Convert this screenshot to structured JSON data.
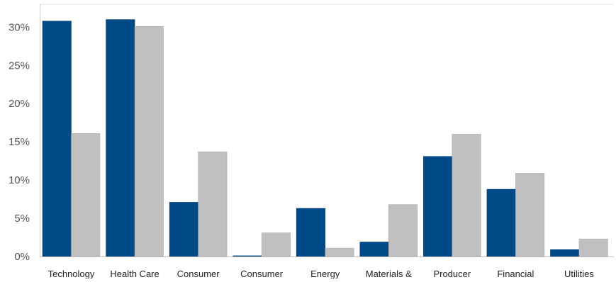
{
  "chart_data": {
    "type": "bar",
    "title": "",
    "xlabel": "",
    "ylabel": "",
    "categories": [
      "Technology",
      "Health Care",
      "Consumer",
      "Consumer",
      "Energy",
      "Materials &",
      "Producer",
      "Financial",
      "Utilities"
    ],
    "series": [
      {
        "values": [
          30.8,
          31.0,
          7.1,
          0.1,
          6.3,
          1.9,
          13.1,
          8.8,
          0.9
        ],
        "color": "#004a87"
      },
      {
        "values": [
          16.1,
          30.1,
          13.7,
          3.1,
          1.1,
          6.8,
          16.0,
          10.9,
          2.3
        ],
        "color": "#c0c0c0"
      }
    ],
    "ylim": [
      0,
      33
    ],
    "yticks": [
      0,
      5,
      10,
      15,
      20,
      25,
      30
    ],
    "ytick_labels": [
      "0%",
      "5%",
      "10%",
      "15%",
      "20%",
      "25%",
      "30%"
    ],
    "grid": false,
    "legend": "none"
  }
}
